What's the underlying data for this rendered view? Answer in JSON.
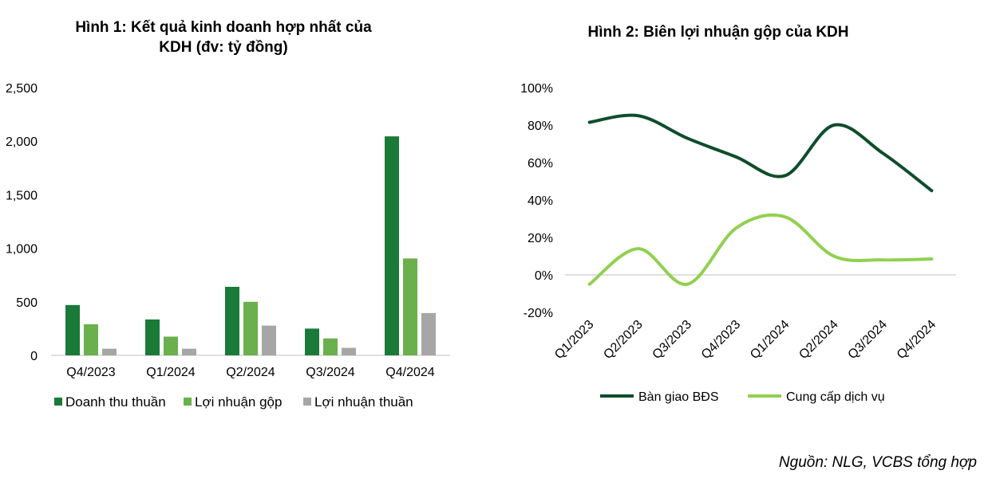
{
  "source": "Nguồn: NLG, VCBS tổng hợp",
  "chart_data": [
    {
      "type": "bar",
      "title_lines": [
        "Hình 1: Kết quả kinh doanh hợp nhất của",
        "KDH (đv: tỷ đồng)"
      ],
      "categories": [
        "Q4/2023",
        "Q1/2024",
        "Q2/2024",
        "Q3/2024",
        "Q4/2024"
      ],
      "y_ticks": [
        "0",
        "500",
        "1,000",
        "1,500",
        "2,000",
        "2,500"
      ],
      "ylim": [
        0,
        2500
      ],
      "legend_position": "bottom",
      "series": [
        {
          "name": "Doanh thu thuần",
          "color": "#1a7a37",
          "values": [
            470,
            335,
            640,
            250,
            2045
          ]
        },
        {
          "name": "Lợi nhuận gộp",
          "color": "#6ab04c",
          "values": [
            290,
            175,
            500,
            158,
            905
          ]
        },
        {
          "name": "Lợi nhuận thuần",
          "color": "#a6a6a6",
          "values": [
            62,
            62,
            278,
            70,
            395
          ]
        }
      ]
    },
    {
      "type": "line",
      "title": "Hình 2: Biên lợi nhuận gộp của KDH",
      "categories": [
        "Q1/2023",
        "Q2/2023",
        "Q3/2023",
        "Q4/2023",
        "Q1/2024",
        "Q2/2024",
        "Q3/2024",
        "Q4/2024"
      ],
      "y_ticks": [
        "-20%",
        "0%",
        "20%",
        "40%",
        "60%",
        "80%",
        "100%"
      ],
      "ylim": [
        -20,
        100
      ],
      "legend_position": "bottom",
      "series": [
        {
          "name": "Bàn giao BĐS",
          "color": "#0f4d2b",
          "values": [
            81.5,
            85,
            73,
            63,
            53,
            80,
            65,
            45
          ]
        },
        {
          "name": "Cung cấp dịch vụ",
          "color": "#92d050",
          "values": [
            -5,
            14,
            -5,
            25,
            31,
            10,
            8,
            8.5
          ]
        }
      ]
    }
  ]
}
